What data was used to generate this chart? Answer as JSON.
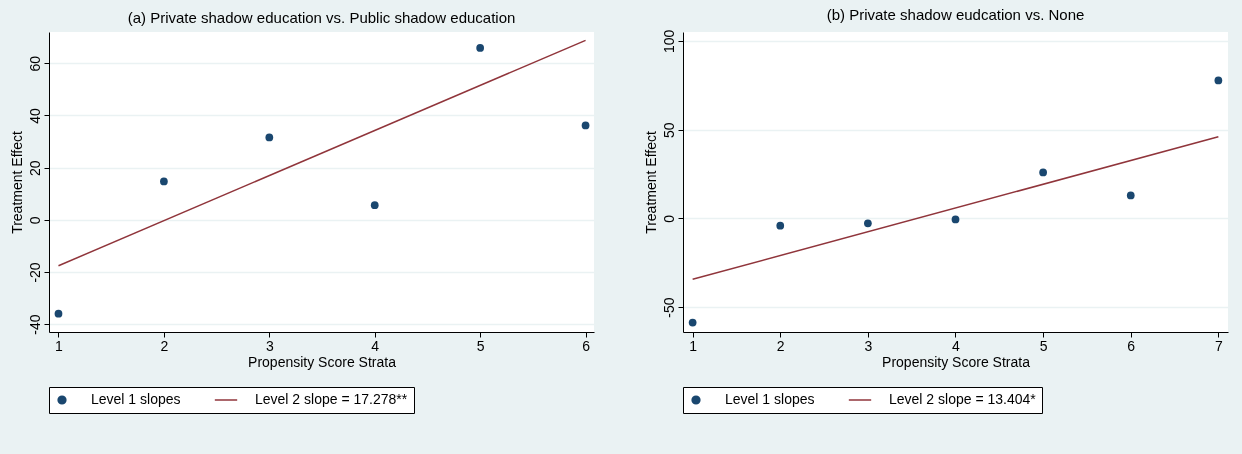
{
  "chart_data": [
    {
      "type": "scatter",
      "title": "(a) Private shadow education vs. Public shadow education",
      "xlabel": "Propensity Score Strata",
      "ylabel": "Treatment Effect",
      "x": [
        1,
        2,
        3,
        4,
        5,
        6
      ],
      "xlim": [
        0.91,
        6.08
      ],
      "xticks": [
        1,
        2,
        3,
        4,
        5,
        6
      ],
      "ylim": [
        -43,
        72
      ],
      "yticks": [
        -40,
        -20,
        0,
        20,
        40,
        60
      ],
      "grid": "y",
      "legend": "bottom",
      "series": [
        {
          "name": "Level 1 slopes",
          "marker": "circle",
          "color": "#1a476f",
          "values": [
            -36,
            14.7,
            31.6,
            5.6,
            65.9,
            36.2
          ]
        },
        {
          "name": "Level 2 slope = 17.278**",
          "type": "line",
          "color": "#90353b",
          "x": [
            1,
            6
          ],
          "values": [
            -17.6,
            68.8
          ]
        }
      ]
    },
    {
      "type": "scatter",
      "title": "(b) Private shadow eudcation vs. None",
      "xlabel": "Propensity Score Strata",
      "ylabel": "Treatment Effect",
      "x": [
        1,
        2,
        3,
        4,
        5,
        6,
        7
      ],
      "xlim": [
        0.89,
        7.11
      ],
      "xticks": [
        1,
        2,
        3,
        4,
        5,
        6,
        7
      ],
      "ylim": [
        -64,
        105
      ],
      "yticks": [
        -50,
        0,
        50,
        100
      ],
      "grid": "y",
      "legend": "bottom",
      "series": [
        {
          "name": "Level 1 slopes",
          "marker": "circle",
          "color": "#1a476f",
          "values": [
            -58.7,
            -4.1,
            -2.8,
            -0.6,
            25.9,
            12.9,
            77.7
          ]
        },
        {
          "name": "Level 2 slope = 13.404*",
          "type": "line",
          "color": "#90353b",
          "x": [
            1,
            7
          ],
          "values": [
            -34.3,
            46.0
          ]
        }
      ]
    }
  ]
}
